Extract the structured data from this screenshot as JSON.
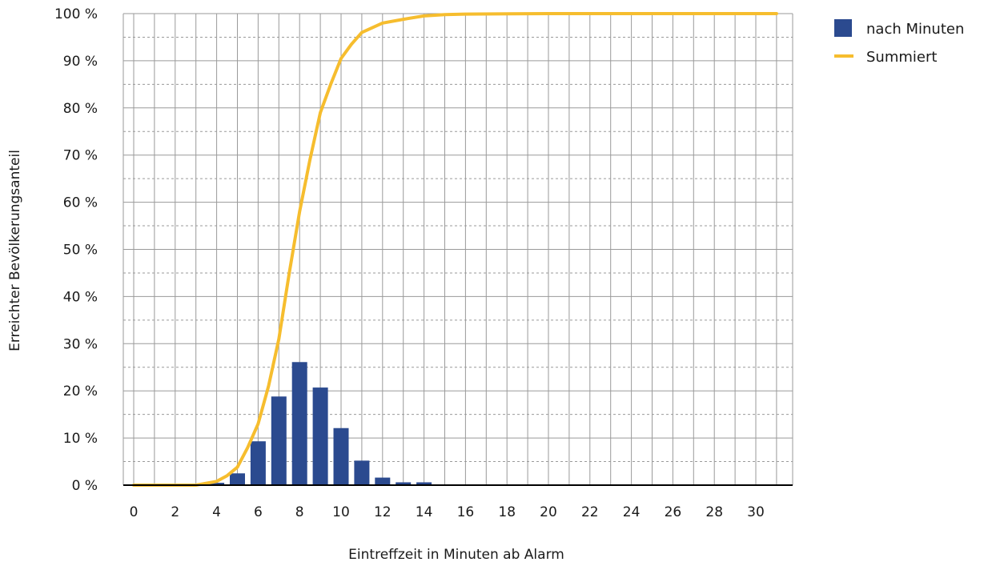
{
  "chart_data": {
    "type": "bar",
    "xlabel": "Eintreffzeit in Minuten ab Alarm",
    "ylabel": "Erreichter Bevölkerungsanteil",
    "xlim": [
      0,
      31
    ],
    "ylim": [
      0,
      100
    ],
    "x_tick_labels": [
      "0",
      "2",
      "4",
      "6",
      "8",
      "10",
      "12",
      "14",
      "16",
      "18",
      "20",
      "22",
      "24",
      "26",
      "28",
      "30"
    ],
    "y_tick_labels": [
      "0 %",
      "10 %",
      "20 %",
      "30 %",
      "40 %",
      "50 %",
      "60 %",
      "70 %",
      "80 %",
      "90 %",
      "100 %"
    ],
    "legend": {
      "position": "right",
      "entries": [
        "nach Minuten",
        "Summiert"
      ]
    },
    "grid": true,
    "series": [
      {
        "name": "nach Minuten",
        "type": "bar",
        "color": "#2b4a8f",
        "x": [
          4,
          5,
          6,
          7,
          8,
          9,
          10,
          11,
          12,
          13,
          14
        ],
        "values": [
          0.5,
          2.5,
          9.3,
          18.8,
          26.1,
          20.7,
          12.1,
          5.2,
          1.6,
          0.6,
          0.6
        ]
      },
      {
        "name": "Summiert",
        "type": "line",
        "color": "#f6bd2e",
        "x": [
          0,
          1,
          2,
          3,
          4,
          4.5,
          5,
          5.5,
          6,
          6.5,
          7,
          7.5,
          8,
          8.5,
          9,
          9.5,
          10,
          10.5,
          11,
          11.5,
          12,
          13,
          14,
          15,
          16,
          20,
          25,
          31
        ],
        "values": [
          0,
          0,
          0,
          0,
          0.8,
          2,
          3.8,
          8,
          13,
          21,
          31,
          45,
          58,
          69,
          79,
          85,
          90.5,
          93.5,
          96,
          97,
          98,
          98.8,
          99.5,
          99.8,
          99.9,
          100,
          100,
          100
        ]
      }
    ]
  }
}
